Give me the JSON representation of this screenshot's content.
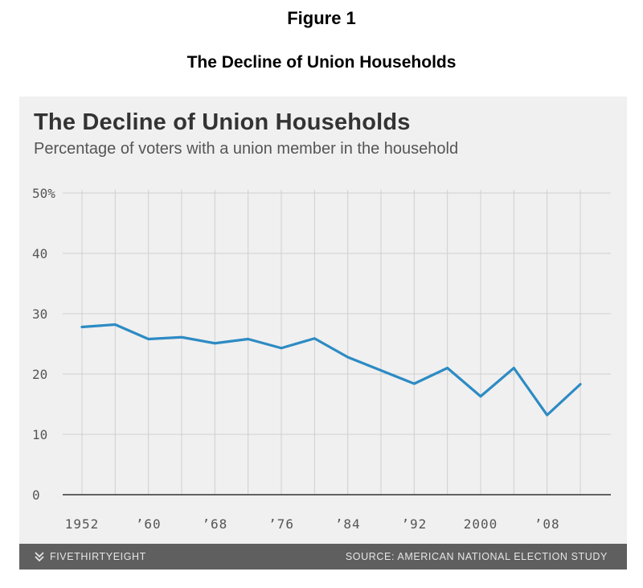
{
  "document": {
    "figure_label": "Figure 1",
    "title": "The Decline of Union Households"
  },
  "chart": {
    "title": "The Decline of Union Households",
    "subtitle": "Percentage of voters with a union member in the household",
    "footer": {
      "brand": "FIVETHIRTYEIGHT",
      "brand_icon": "fivethirtyeight-logo-icon",
      "source": "SOURCE: AMERICAN NATIONAL ELECTION STUDY"
    }
  },
  "colors": {
    "line": "#2d8bc4",
    "panel_background": "#f0f0f0",
    "grid": "#cfcfcf",
    "axis": "#333333",
    "footer_background": "#5f5f5f",
    "footer_text": "#e6e6e6"
  },
  "chart_data": {
    "type": "line",
    "title": "The Decline of Union Households",
    "subtitle": "Percentage of voters with a union member in the household",
    "x": [
      1952,
      1956,
      1960,
      1964,
      1968,
      1972,
      1976,
      1980,
      1984,
      1988,
      1992,
      1996,
      2000,
      2004,
      2008,
      2012
    ],
    "series": [
      {
        "values": [
          27.8,
          28.2,
          25.8,
          26.1,
          25.1,
          25.8,
          24.3,
          25.9,
          22.8,
          20.6,
          18.4,
          21.0,
          16.3,
          21.0,
          13.2,
          18.3
        ]
      }
    ],
    "xlim": [
      1952,
      2012
    ],
    "ylim": [
      0,
      50
    ],
    "y_ticks": [
      0,
      10,
      20,
      30,
      40,
      50
    ],
    "y_tick_labels": [
      "0",
      "10",
      "20",
      "30",
      "40",
      "50%"
    ],
    "x_tick_values": [
      1952,
      1960,
      1968,
      1976,
      1984,
      1992,
      2000,
      2008
    ],
    "x_tick_labels": [
      "1952",
      "’60",
      "’68",
      "’76",
      "’84",
      "’92",
      "2000",
      "’08"
    ],
    "x_gridlines": [
      1952,
      1956,
      1960,
      1964,
      1968,
      1972,
      1976,
      1980,
      1984,
      1988,
      1992,
      1996,
      2000,
      2004,
      2008,
      2012
    ],
    "grid": true,
    "legend": "none",
    "xlabel": "",
    "ylabel": ""
  }
}
